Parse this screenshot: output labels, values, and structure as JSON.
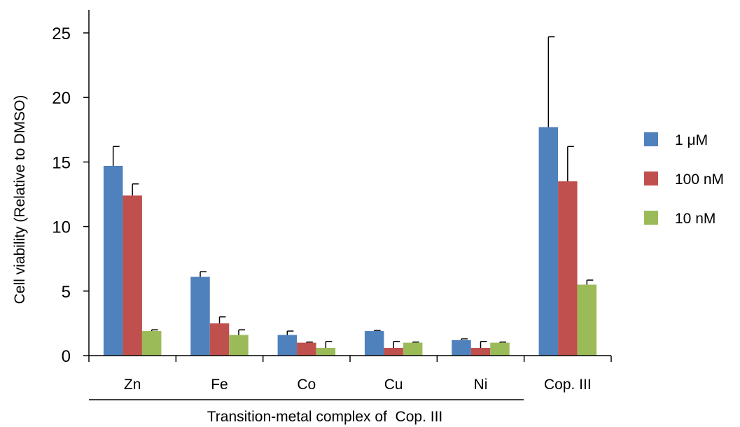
{
  "chart_data": {
    "type": "bar",
    "ylabel": "Cell viability (Relative to DMSO)",
    "xlabel": "Transition-metal complex of  Cop. III",
    "ylim": [
      0,
      25
    ],
    "yticks": [
      0,
      5,
      10,
      15,
      20,
      25
    ],
    "grid": false,
    "legend_position": "right",
    "categories": [
      "Zn",
      "Fe",
      "Co",
      "Cu",
      "Ni",
      "Cop. III"
    ],
    "group_bracket": {
      "label": "Transition-metal complex of  Cop. III",
      "categories": [
        "Zn",
        "Fe",
        "Co",
        "Cu",
        "Ni"
      ]
    },
    "series": [
      {
        "name": "1 μM",
        "color": "#4f81bd",
        "values": [
          14.7,
          6.1,
          1.6,
          1.9,
          1.2,
          17.7
        ],
        "errors": [
          1.5,
          0.4,
          0.3,
          0.05,
          0.1,
          7.0
        ]
      },
      {
        "name": "100 nM",
        "color": "#c0504d",
        "values": [
          12.4,
          2.5,
          1.0,
          0.6,
          0.6,
          13.5
        ],
        "errors": [
          0.9,
          0.5,
          0.05,
          0.5,
          0.5,
          2.7
        ]
      },
      {
        "name": "10 nM",
        "color": "#9bbb59",
        "values": [
          1.9,
          1.6,
          0.6,
          1.0,
          1.0,
          5.5
        ],
        "errors": [
          0.1,
          0.4,
          0.5,
          0.05,
          0.05,
          0.35
        ]
      }
    ]
  }
}
